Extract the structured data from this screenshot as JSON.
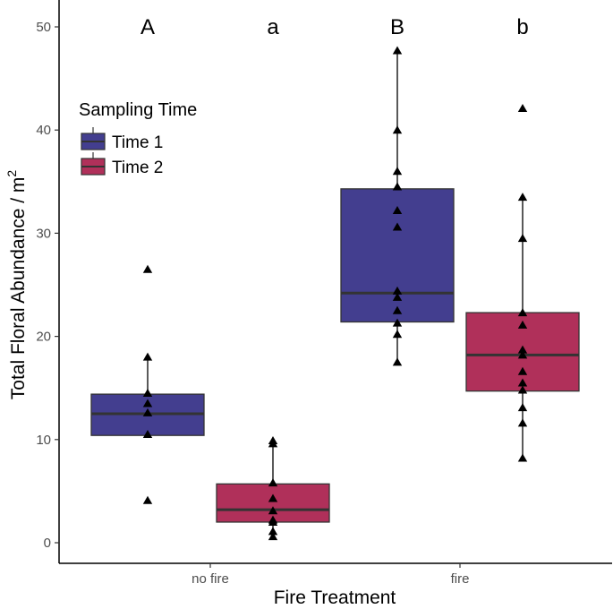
{
  "chart_data": {
    "type": "box",
    "title": "",
    "xlabel": "Fire Treatment",
    "ylabel": "Total Floral Abundance / m",
    "ylabel_superscript": "2",
    "ylim": [
      0,
      52
    ],
    "yticks": [
      0,
      10,
      20,
      30,
      40,
      50
    ],
    "categories": [
      "no fire",
      "fire"
    ],
    "legend": {
      "title": "Sampling Time",
      "position": "top-left",
      "entries": [
        {
          "label": "Time 1",
          "color": "#433E8F"
        },
        {
          "label": "Time 2",
          "color": "#B0305A"
        }
      ]
    },
    "series": [
      {
        "name": "Time 1",
        "color": "#433E8F",
        "boxes": [
          {
            "category": "no fire",
            "q1": 10.4,
            "median": 12.5,
            "q3": 14.4,
            "whisker_low": 10.4,
            "whisker_high": 18.0,
            "points": [
              26.5,
              18.0,
              14.5,
              13.5,
              12.6,
              10.5,
              4.1
            ]
          },
          {
            "category": "fire",
            "q1": 21.4,
            "median": 24.2,
            "q3": 34.3,
            "whisker_low": 17.5,
            "whisker_high": 47.7,
            "points": [
              47.7,
              40.0,
              36.0,
              34.5,
              32.2,
              30.6,
              24.4,
              23.8,
              22.5,
              21.3,
              20.2,
              17.5
            ]
          }
        ]
      },
      {
        "name": "Time 2",
        "color": "#B0305A",
        "boxes": [
          {
            "category": "no fire",
            "q1": 2.0,
            "median": 3.2,
            "q3": 5.7,
            "whisker_low": 0.6,
            "whisker_high": 9.9,
            "points": [
              9.9,
              9.6,
              5.8,
              4.3,
              3.1,
              2.2,
              2.0,
              1.1,
              0.6
            ]
          },
          {
            "category": "fire",
            "q1": 14.7,
            "median": 18.2,
            "q3": 22.3,
            "whisker_low": 8.2,
            "whisker_high": 33.5,
            "points": [
              42.1,
              33.5,
              29.5,
              22.3,
              21.1,
              18.7,
              18.2,
              16.6,
              15.5,
              14.8,
              13.1,
              11.6,
              8.2
            ]
          }
        ]
      }
    ],
    "annotations": [
      {
        "text": "A",
        "category": "no fire",
        "series": "Time 1",
        "y": 50
      },
      {
        "text": "a",
        "category": "no fire",
        "series": "Time 2",
        "y": 50
      },
      {
        "text": "B",
        "category": "fire",
        "series": "Time 1",
        "y": 50
      },
      {
        "text": "b",
        "category": "fire",
        "series": "Time 2",
        "y": 50
      }
    ]
  }
}
